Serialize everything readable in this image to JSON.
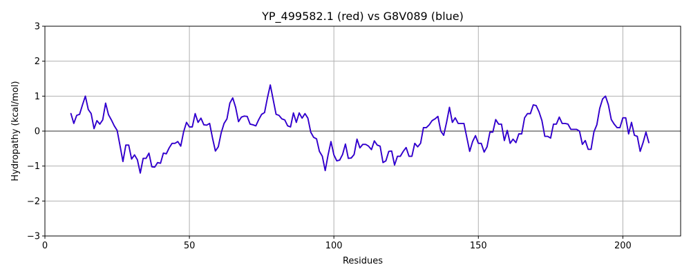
{
  "chart_data": {
    "type": "line",
    "title": "YP_499582.1 (red) vs G8V089 (blue)",
    "xlabel": "Residues",
    "ylabel": "Hydropathy (kcal/mol)",
    "xlim": [
      0,
      220
    ],
    "ylim": [
      -3,
      3
    ],
    "x_ticks": [
      0,
      50,
      100,
      150,
      200
    ],
    "y_ticks": [
      -3,
      -2,
      -1,
      0,
      1,
      2,
      3
    ],
    "grid": true,
    "zero_line": true,
    "series": [
      {
        "color": "#ff0000",
        "x": [
          9,
          10,
          11,
          12,
          13,
          14,
          15,
          16,
          17,
          18,
          19,
          20,
          21,
          22,
          23,
          24,
          25,
          26,
          27,
          28,
          29,
          30,
          31,
          32,
          33,
          34,
          35,
          36,
          37,
          38,
          39,
          40,
          41,
          42,
          43,
          44,
          45,
          46,
          47,
          48,
          49,
          50,
          51,
          52,
          53,
          54,
          55,
          56,
          57,
          58,
          59,
          60,
          61,
          62,
          63,
          64,
          65,
          66,
          67,
          68,
          69,
          70,
          71,
          72,
          73,
          74,
          75,
          76,
          77,
          78,
          79,
          80,
          81,
          82,
          83,
          84,
          85,
          86,
          87,
          88,
          89,
          90,
          91,
          92,
          93,
          94,
          95,
          96,
          97,
          98,
          99,
          100,
          101,
          102,
          103,
          104,
          105,
          106,
          107,
          108,
          109,
          110,
          111,
          112,
          113,
          114,
          115,
          116,
          117,
          118,
          119,
          120,
          121,
          122,
          123,
          124,
          125,
          126,
          127,
          128,
          129,
          130,
          131,
          132,
          133,
          134,
          135,
          136,
          137,
          138,
          139,
          140,
          141,
          142,
          143,
          144,
          145,
          146,
          147,
          148,
          149,
          150,
          151,
          152,
          153,
          154,
          155,
          156,
          157,
          158,
          159,
          160,
          161,
          162,
          163,
          164,
          165,
          166,
          167,
          168,
          169,
          170,
          171,
          172,
          173,
          174,
          175,
          176,
          177,
          178,
          179,
          180,
          181,
          182,
          183,
          184,
          185,
          186,
          187,
          188,
          189,
          190,
          191,
          192,
          193,
          194,
          195,
          196,
          197,
          198,
          199,
          200,
          201,
          202,
          203,
          204,
          205,
          206,
          207,
          208,
          209
        ],
        "y": [
          0.5,
          0.22,
          0.45,
          0.48,
          0.75,
          1.0,
          0.62,
          0.5,
          0.07,
          0.3,
          0.2,
          0.32,
          0.8,
          0.47,
          0.32,
          0.15,
          0.02,
          -0.42,
          -0.87,
          -0.4,
          -0.4,
          -0.8,
          -0.68,
          -0.82,
          -1.2,
          -0.78,
          -0.78,
          -0.63,
          -1.02,
          -1.03,
          -0.9,
          -0.92,
          -0.63,
          -0.65,
          -0.48,
          -0.35,
          -0.35,
          -0.3,
          -0.43,
          -0.02,
          0.25,
          0.12,
          0.12,
          0.5,
          0.25,
          0.37,
          0.18,
          0.17,
          0.22,
          -0.2,
          -0.57,
          -0.45,
          -0.05,
          0.22,
          0.35,
          0.8,
          0.95,
          0.68,
          0.27,
          0.4,
          0.43,
          0.42,
          0.2,
          0.18,
          0.15,
          0.33,
          0.48,
          0.53,
          0.95,
          1.32,
          0.9,
          0.48,
          0.45,
          0.35,
          0.32,
          0.15,
          0.12,
          0.52,
          0.25,
          0.52,
          0.37,
          0.5,
          0.37,
          -0.03,
          -0.18,
          -0.22,
          -0.58,
          -0.72,
          -1.13,
          -0.68,
          -0.3,
          -0.68,
          -0.85,
          -0.83,
          -0.67,
          -0.37,
          -0.78,
          -0.77,
          -0.67,
          -0.23,
          -0.48,
          -0.38,
          -0.38,
          -0.43,
          -0.53,
          -0.28,
          -0.4,
          -0.43,
          -0.9,
          -0.85,
          -0.58,
          -0.57,
          -0.97,
          -0.72,
          -0.72,
          -0.58,
          -0.47,
          -0.72,
          -0.72,
          -0.35,
          -0.45,
          -0.35,
          0.1,
          0.1,
          0.18,
          0.3,
          0.35,
          0.42,
          0.0,
          -0.12,
          0.25,
          0.68,
          0.25,
          0.38,
          0.22,
          0.22,
          0.22,
          -0.18,
          -0.58,
          -0.3,
          -0.13,
          -0.35,
          -0.35,
          -0.6,
          -0.45,
          -0.03,
          -0.03,
          0.33,
          0.2,
          0.2,
          -0.27,
          0.02,
          -0.35,
          -0.23,
          -0.33,
          -0.08,
          -0.08,
          0.38,
          0.5,
          0.5,
          0.75,
          0.73,
          0.55,
          0.3,
          -0.15,
          -0.15,
          -0.2,
          0.2,
          0.2,
          0.4,
          0.22,
          0.22,
          0.2,
          0.05,
          0.05,
          0.05,
          0.0,
          -0.38,
          -0.27,
          -0.52,
          -0.52,
          -0.02,
          0.18,
          0.65,
          0.92,
          1.0,
          0.75,
          0.33,
          0.2,
          0.1,
          0.1,
          0.38,
          0.38,
          -0.08,
          0.25,
          -0.12,
          -0.15,
          -0.58,
          -0.33,
          -0.03,
          -0.33
        ]
      },
      {
        "color": "#0000ff",
        "x": [
          9,
          10,
          11,
          12,
          13,
          14,
          15,
          16,
          17,
          18,
          19,
          20,
          21,
          22,
          23,
          24,
          25,
          26,
          27,
          28,
          29,
          30,
          31,
          32,
          33,
          34,
          35,
          36,
          37,
          38,
          39,
          40,
          41,
          42,
          43,
          44,
          45,
          46,
          47,
          48,
          49,
          50,
          51,
          52,
          53,
          54,
          55,
          56,
          57,
          58,
          59,
          60,
          61,
          62,
          63,
          64,
          65,
          66,
          67,
          68,
          69,
          70,
          71,
          72,
          73,
          74,
          75,
          76,
          77,
          78,
          79,
          80,
          81,
          82,
          83,
          84,
          85,
          86,
          87,
          88,
          89,
          90,
          91,
          92,
          93,
          94,
          95,
          96,
          97,
          98,
          99,
          100,
          101,
          102,
          103,
          104,
          105,
          106,
          107,
          108,
          109,
          110,
          111,
          112,
          113,
          114,
          115,
          116,
          117,
          118,
          119,
          120,
          121,
          122,
          123,
          124,
          125,
          126,
          127,
          128,
          129,
          130,
          131,
          132,
          133,
          134,
          135,
          136,
          137,
          138,
          139,
          140,
          141,
          142,
          143,
          144,
          145,
          146,
          147,
          148,
          149,
          150,
          151,
          152,
          153,
          154,
          155,
          156,
          157,
          158,
          159,
          160,
          161,
          162,
          163,
          164,
          165,
          166,
          167,
          168,
          169,
          170,
          171,
          172,
          173,
          174,
          175,
          176,
          177,
          178,
          179,
          180,
          181,
          182,
          183,
          184,
          185,
          186,
          187,
          188,
          189,
          190,
          191,
          192,
          193,
          194,
          195,
          196,
          197,
          198,
          199,
          200,
          201,
          202,
          203,
          204,
          205,
          206,
          207,
          208,
          209
        ],
        "y": [
          0.5,
          0.22,
          0.45,
          0.48,
          0.75,
          1.0,
          0.62,
          0.5,
          0.07,
          0.3,
          0.2,
          0.32,
          0.8,
          0.47,
          0.32,
          0.15,
          0.02,
          -0.42,
          -0.87,
          -0.4,
          -0.4,
          -0.8,
          -0.68,
          -0.82,
          -1.2,
          -0.78,
          -0.78,
          -0.63,
          -1.02,
          -1.03,
          -0.9,
          -0.92,
          -0.63,
          -0.65,
          -0.48,
          -0.35,
          -0.35,
          -0.3,
          -0.43,
          -0.02,
          0.25,
          0.12,
          0.12,
          0.5,
          0.25,
          0.37,
          0.18,
          0.17,
          0.22,
          -0.2,
          -0.57,
          -0.45,
          -0.05,
          0.22,
          0.35,
          0.8,
          0.95,
          0.68,
          0.27,
          0.4,
          0.43,
          0.42,
          0.2,
          0.18,
          0.15,
          0.33,
          0.48,
          0.53,
          0.95,
          1.32,
          0.9,
          0.48,
          0.45,
          0.35,
          0.32,
          0.15,
          0.12,
          0.52,
          0.25,
          0.52,
          0.37,
          0.5,
          0.37,
          -0.03,
          -0.18,
          -0.22,
          -0.58,
          -0.72,
          -1.13,
          -0.68,
          -0.3,
          -0.68,
          -0.85,
          -0.83,
          -0.67,
          -0.37,
          -0.78,
          -0.77,
          -0.67,
          -0.23,
          -0.48,
          -0.38,
          -0.38,
          -0.43,
          -0.53,
          -0.28,
          -0.4,
          -0.43,
          -0.9,
          -0.85,
          -0.58,
          -0.57,
          -0.97,
          -0.72,
          -0.72,
          -0.58,
          -0.47,
          -0.72,
          -0.72,
          -0.35,
          -0.45,
          -0.35,
          0.1,
          0.1,
          0.18,
          0.3,
          0.35,
          0.42,
          0.0,
          -0.12,
          0.25,
          0.68,
          0.25,
          0.38,
          0.22,
          0.22,
          0.22,
          -0.18,
          -0.58,
          -0.3,
          -0.13,
          -0.35,
          -0.35,
          -0.6,
          -0.45,
          -0.03,
          -0.03,
          0.33,
          0.2,
          0.2,
          -0.27,
          0.02,
          -0.35,
          -0.23,
          -0.33,
          -0.08,
          -0.08,
          0.38,
          0.5,
          0.5,
          0.75,
          0.73,
          0.55,
          0.3,
          -0.15,
          -0.15,
          -0.2,
          0.2,
          0.2,
          0.4,
          0.22,
          0.22,
          0.2,
          0.05,
          0.05,
          0.05,
          0.0,
          -0.38,
          -0.27,
          -0.52,
          -0.52,
          -0.02,
          0.18,
          0.65,
          0.92,
          1.0,
          0.75,
          0.33,
          0.2,
          0.1,
          0.1,
          0.38,
          0.38,
          -0.08,
          0.25,
          -0.12,
          -0.15,
          -0.58,
          -0.33,
          -0.03,
          -0.33
        ]
      }
    ]
  }
}
